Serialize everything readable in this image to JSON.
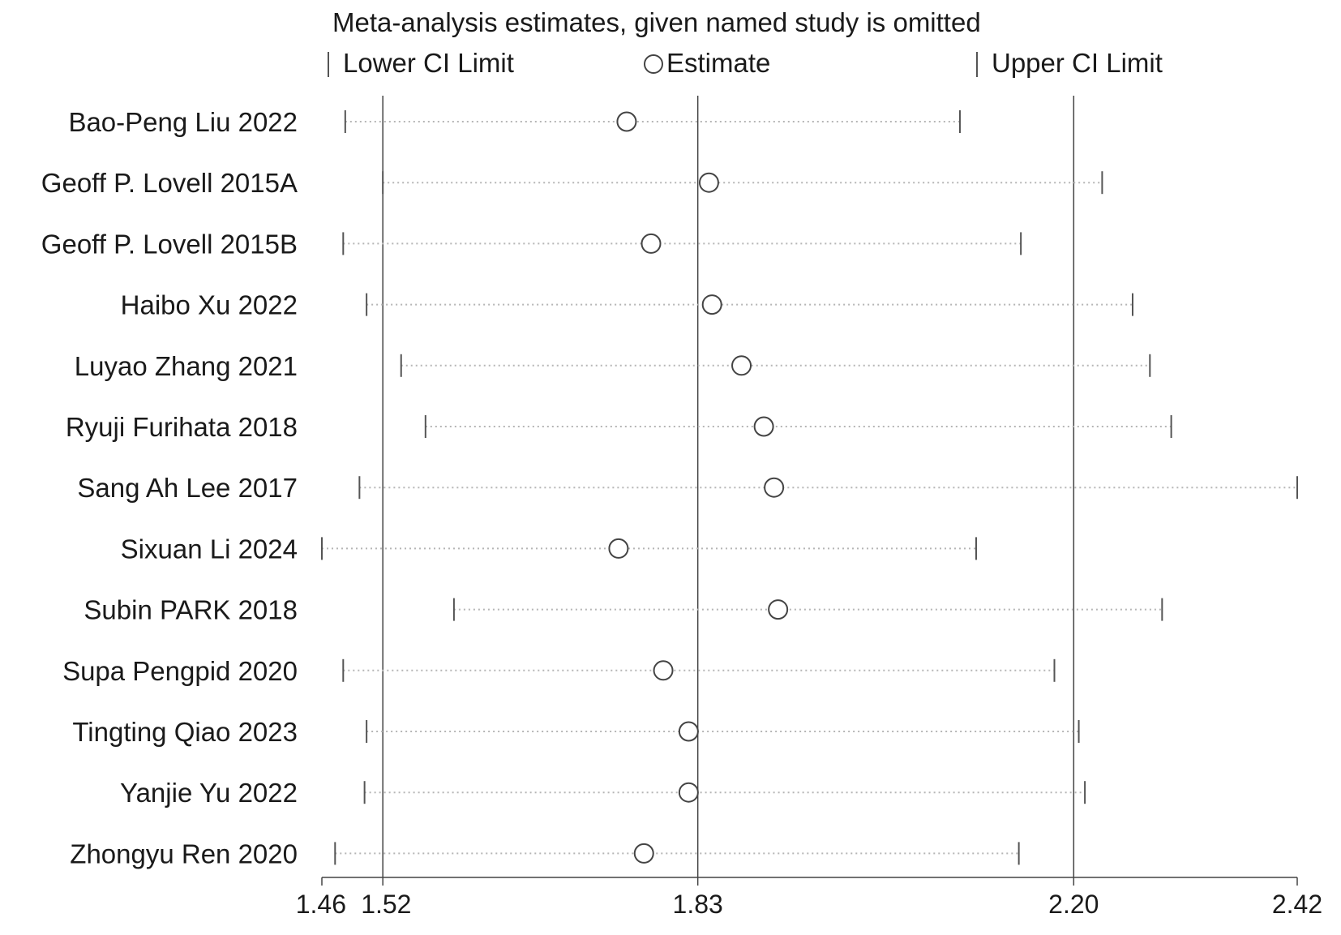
{
  "chart_data": {
    "type": "sensitivity-analysis",
    "title": "Meta-analysis estimates, given named study is omitted",
    "legend": {
      "lower": "Lower CI Limit",
      "estimate": "Estimate",
      "upper": "Upper CI Limit",
      "placement": "top"
    },
    "xlim": [
      1.46,
      2.42
    ],
    "x_ticks": [
      {
        "value": 1.46,
        "label": "1.46"
      },
      {
        "value": 1.52,
        "label": "1.52"
      },
      {
        "value": 1.83,
        "label": "1.83"
      },
      {
        "value": 2.2,
        "label": "2.20"
      },
      {
        "value": 2.42,
        "label": "2.42"
      }
    ],
    "reference_lines": [
      1.52,
      1.83,
      2.2
    ],
    "studies": [
      {
        "name": "Bao-Peng Liu 2022",
        "lower": 1.483,
        "estimate": 1.76,
        "upper": 2.088
      },
      {
        "name": "Geoff P. Lovell 2015A",
        "lower": 1.52,
        "estimate": 1.841,
        "upper": 2.228
      },
      {
        "name": "Geoff P. Lovell 2015B",
        "lower": 1.481,
        "estimate": 1.784,
        "upper": 2.148
      },
      {
        "name": "Haibo Xu 2022",
        "lower": 1.504,
        "estimate": 1.844,
        "upper": 2.258
      },
      {
        "name": "Luyao Zhang 2021",
        "lower": 1.538,
        "estimate": 1.873,
        "upper": 2.275
      },
      {
        "name": "Ryuji Furihata 2018",
        "lower": 1.562,
        "estimate": 1.895,
        "upper": 2.296
      },
      {
        "name": "Sang Ah Lee 2017",
        "lower": 1.497,
        "estimate": 1.905,
        "upper": 2.42
      },
      {
        "name": "Sixuan Li 2024",
        "lower": 1.46,
        "estimate": 1.752,
        "upper": 2.104
      },
      {
        "name": "Subin PARK 2018",
        "lower": 1.59,
        "estimate": 1.909,
        "upper": 2.287
      },
      {
        "name": "Supa Pengpid 2020",
        "lower": 1.481,
        "estimate": 1.796,
        "upper": 2.181
      },
      {
        "name": "Tingting Qiao 2023",
        "lower": 1.504,
        "estimate": 1.821,
        "upper": 2.205
      },
      {
        "name": "Yanjie Yu 2022",
        "lower": 1.502,
        "estimate": 1.821,
        "upper": 2.211
      },
      {
        "name": "Zhongyu Ren 2020",
        "lower": 1.473,
        "estimate": 1.777,
        "upper": 2.146
      }
    ]
  }
}
